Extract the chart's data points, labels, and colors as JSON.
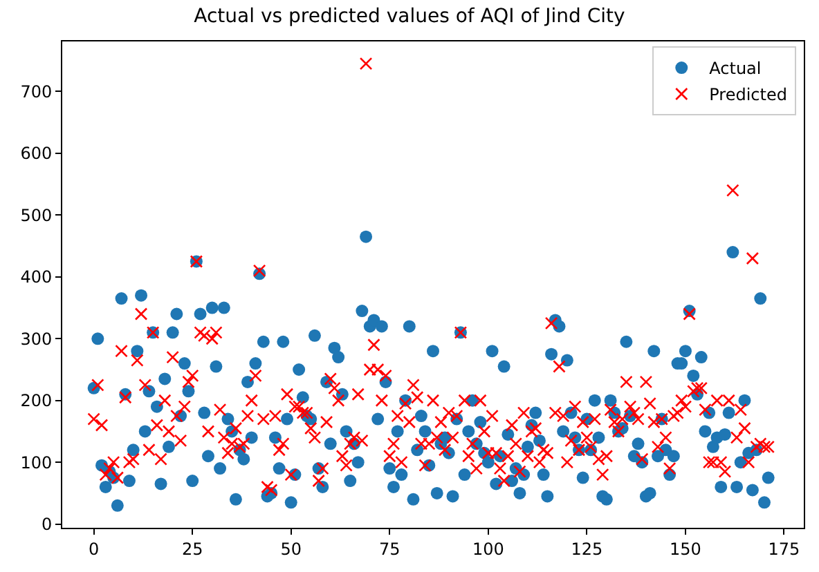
{
  "chart_data": {
    "type": "scatter",
    "title": "Actual vs predicted values of AQI of Jind City",
    "x": [
      0,
      1,
      2,
      3,
      4,
      5,
      6,
      7,
      8,
      9,
      10,
      11,
      12,
      13,
      14,
      15,
      16,
      17,
      18,
      19,
      20,
      21,
      22,
      23,
      24,
      25,
      26,
      27,
      28,
      29,
      30,
      31,
      32,
      33,
      34,
      35,
      36,
      37,
      38,
      39,
      40,
      41,
      42,
      43,
      44,
      45,
      46,
      47,
      48,
      49,
      50,
      51,
      52,
      53,
      54,
      55,
      56,
      57,
      58,
      59,
      60,
      61,
      62,
      63,
      64,
      65,
      66,
      67,
      68,
      69,
      70,
      71,
      72,
      73,
      74,
      75,
      76,
      77,
      78,
      79,
      80,
      81,
      82,
      83,
      84,
      85,
      86,
      87,
      88,
      89,
      90,
      91,
      92,
      93,
      94,
      95,
      96,
      97,
      98,
      99,
      100,
      101,
      102,
      103,
      104,
      105,
      106,
      107,
      108,
      109,
      110,
      111,
      112,
      113,
      114,
      115,
      116,
      117,
      118,
      119,
      120,
      121,
      122,
      123,
      124,
      125,
      126,
      127,
      128,
      129,
      130,
      131,
      132,
      133,
      134,
      135,
      136,
      137,
      138,
      139,
      140,
      141,
      142,
      143,
      144,
      145,
      146,
      147,
      148,
      149,
      150,
      151,
      152,
      153,
      154,
      155,
      156,
      157,
      158,
      159,
      160,
      161,
      162,
      163,
      164,
      165,
      166,
      167,
      168,
      169,
      170,
      171
    ],
    "series": [
      {
        "name": "Actual",
        "color": "#1f77b4",
        "marker": "circle",
        "values": [
          220,
          300,
          95,
          60,
          85,
          75,
          30,
          365,
          210,
          70,
          120,
          280,
          370,
          150,
          215,
          310,
          190,
          65,
          235,
          125,
          310,
          340,
          175,
          260,
          215,
          70,
          425,
          340,
          180,
          110,
          350,
          255,
          90,
          350,
          170,
          150,
          40,
          120,
          105,
          230,
          140,
          260,
          405,
          295,
          45,
          50,
          140,
          90,
          295,
          170,
          35,
          80,
          250,
          205,
          175,
          170,
          305,
          90,
          60,
          230,
          130,
          285,
          270,
          210,
          150,
          70,
          130,
          100,
          345,
          465,
          320,
          330,
          170,
          320,
          230,
          90,
          60,
          150,
          80,
          200,
          320,
          40,
          120,
          175,
          150,
          95,
          280,
          50,
          130,
          140,
          115,
          45,
          170,
          310,
          80,
          150,
          200,
          130,
          165,
          115,
          100,
          280,
          65,
          110,
          255,
          145,
          70,
          90,
          50,
          80,
          125,
          160,
          180,
          135,
          80,
          45,
          275,
          330,
          320,
          150,
          265,
          180,
          140,
          120,
          75,
          170,
          120,
          200,
          140,
          45,
          40,
          200,
          180,
          150,
          155,
          295,
          175,
          110,
          130,
          100,
          45,
          50,
          280,
          110,
          170,
          120,
          80,
          110,
          260,
          260,
          280,
          345,
          240,
          210,
          270,
          150,
          180,
          125,
          140,
          60,
          145,
          180,
          440,
          60,
          100,
          200,
          115,
          55,
          120,
          365,
          35,
          75
        ]
      },
      {
        "name": "Predicted",
        "color": "#ff0000",
        "marker": "cross",
        "values": [
          170,
          225,
          160,
          80,
          90,
          100,
          75,
          280,
          205,
          100,
          105,
          265,
          340,
          225,
          120,
          310,
          160,
          105,
          200,
          150,
          270,
          175,
          135,
          190,
          230,
          240,
          425,
          310,
          305,
          150,
          300,
          310,
          185,
          140,
          115,
          130,
          155,
          125,
          130,
          175,
          200,
          240,
          410,
          170,
          60,
          55,
          175,
          120,
          130,
          210,
          80,
          190,
          190,
          180,
          180,
          155,
          140,
          70,
          90,
          165,
          235,
          220,
          200,
          110,
          95,
          130,
          140,
          210,
          135,
          745,
          250,
          290,
          250,
          200,
          240,
          110,
          130,
          175,
          100,
          195,
          165,
          225,
          205,
          130,
          95,
          130,
          200,
          140,
          165,
          120,
          180,
          140,
          175,
          310,
          200,
          110,
          130,
          90,
          200,
          150,
          115,
          175,
          115,
          90,
          70,
          110,
          160,
          130,
          85,
          180,
          110,
          150,
          155,
          100,
          120,
          115,
          325,
          180,
          255,
          175,
          100,
          135,
          190,
          120,
          165,
          140,
          125,
          170,
          105,
          80,
          110,
          185,
          165,
          150,
          170,
          230,
          190,
          180,
          170,
          105,
          230,
          195,
          165,
          125,
          170,
          140,
          90,
          175,
          180,
          200,
          190,
          340,
          215,
          220,
          220,
          185,
          100,
          100,
          200,
          100,
          85,
          200,
          540,
          140,
          185,
          155,
          100,
          430,
          125,
          130,
          125,
          125
        ]
      }
    ],
    "xlim": [
      -8,
      180
    ],
    "xticks": [
      0,
      25,
      50,
      75,
      100,
      125,
      150,
      175
    ],
    "ylim": [
      -6,
      781
    ],
    "yticks": [
      0,
      100,
      200,
      300,
      400,
      500,
      600,
      700
    ],
    "legend": "top right"
  }
}
